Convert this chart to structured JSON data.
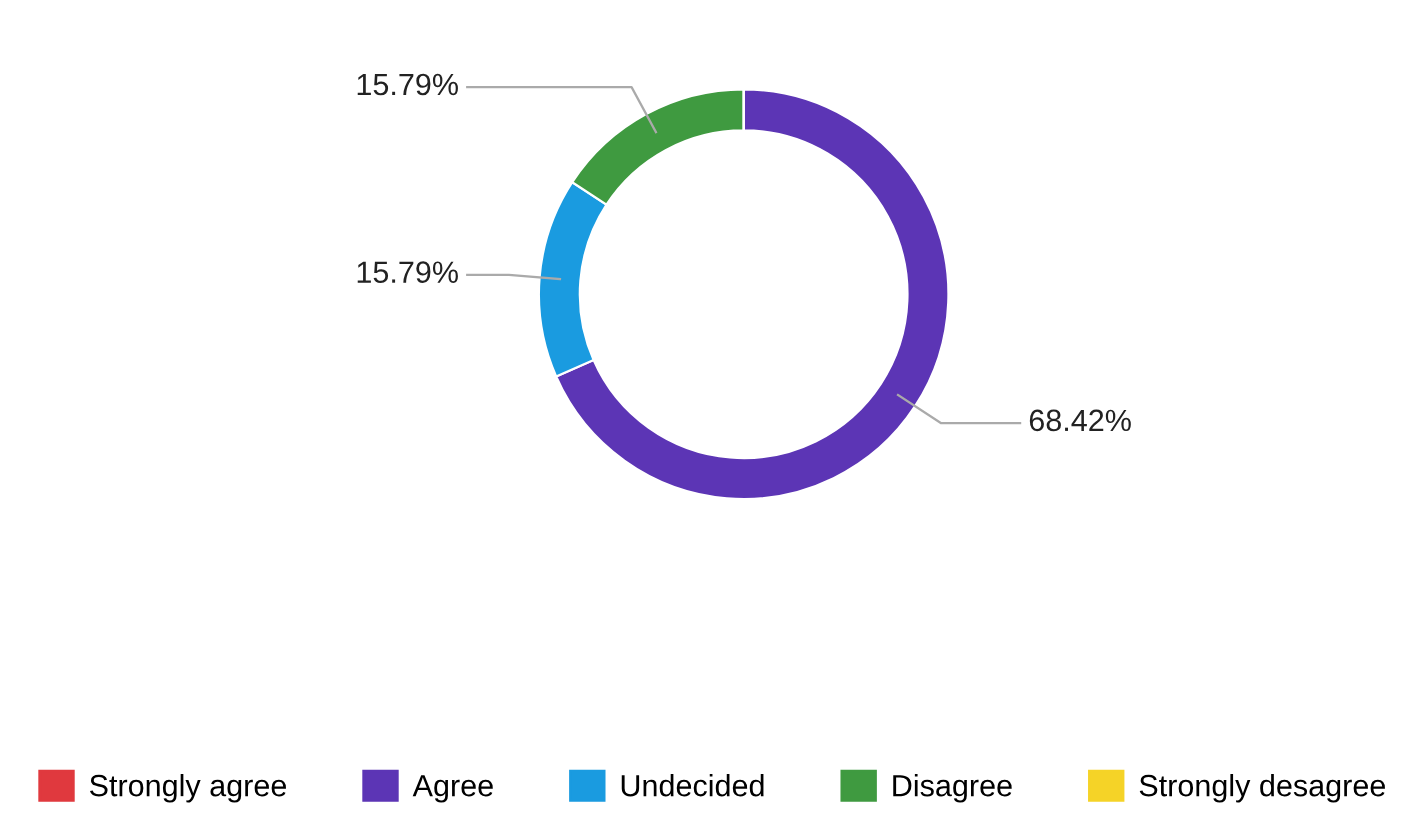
{
  "chart_data": {
    "type": "donut",
    "categories": [
      "Strongly agree",
      "Agree",
      "Undecided",
      "Disagree",
      "Strongly desagree"
    ],
    "values": [
      0,
      68.42,
      15.79,
      15.79,
      0
    ],
    "colors": [
      "#e0393e",
      "#5c35b5",
      "#1a9be0",
      "#3f9a40",
      "#f5d327"
    ],
    "value_labels": [
      null,
      "68.42%",
      "15.79%",
      "15.79%",
      null
    ],
    "legend": "bottom"
  }
}
